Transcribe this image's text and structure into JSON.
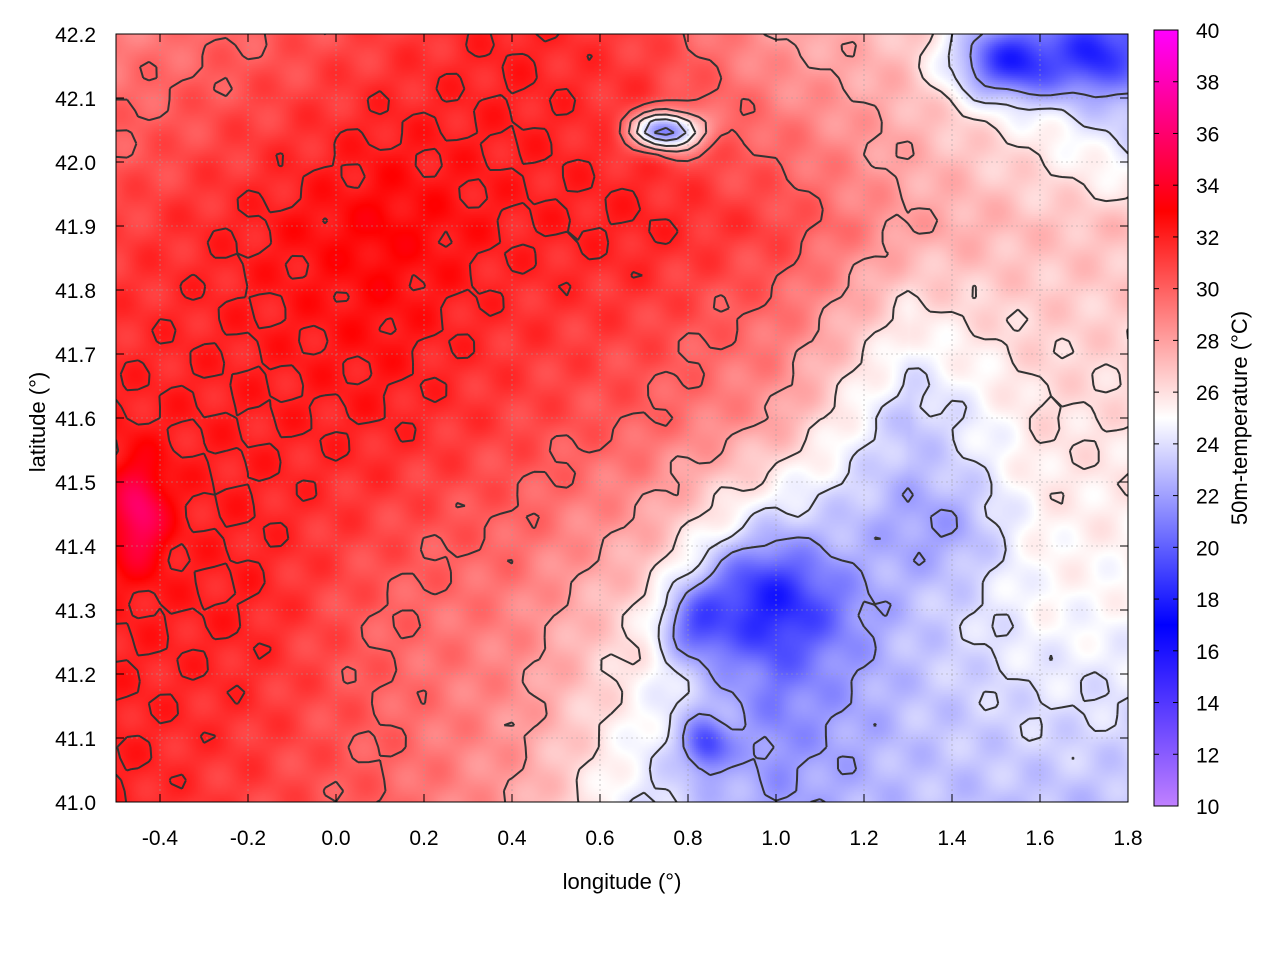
{
  "chart_data": {
    "type": "heatmap",
    "title": "",
    "xlabel": "longitude (°)",
    "ylabel": "latitude (°)",
    "colorbar_label": "50m-temperature (°C)",
    "xlim": [
      -0.5,
      1.8
    ],
    "ylim": [
      41.0,
      42.2
    ],
    "clim": [
      10,
      40
    ],
    "x_ticks": [
      "-0.4",
      "-0.2",
      "0.0",
      "0.2",
      "0.4",
      "0.6",
      "0.8",
      "1.0",
      "1.2",
      "1.4",
      "1.6",
      "1.8"
    ],
    "x_tick_values": [
      -0.4,
      -0.2,
      0.0,
      0.2,
      0.4,
      0.6,
      0.8,
      1.0,
      1.2,
      1.4,
      1.6,
      1.8
    ],
    "y_ticks": [
      "41.0",
      "41.1",
      "41.2",
      "41.3",
      "41.4",
      "41.5",
      "41.6",
      "41.7",
      "41.8",
      "41.9",
      "42.0",
      "42.1",
      "42.2"
    ],
    "y_tick_values": [
      41.0,
      41.1,
      41.2,
      41.3,
      41.4,
      41.5,
      41.6,
      41.7,
      41.8,
      41.9,
      42.0,
      42.1,
      42.2
    ],
    "colorbar_ticks": [
      "10",
      "12",
      "14",
      "16",
      "18",
      "20",
      "22",
      "24",
      "26",
      "28",
      "30",
      "32",
      "34",
      "36",
      "38",
      "40"
    ],
    "colorbar_tick_values": [
      10,
      12,
      14,
      16,
      18,
      20,
      22,
      24,
      26,
      28,
      30,
      32,
      34,
      36,
      38,
      40
    ],
    "colormap": [
      {
        "value": 10,
        "color": "#c080ff"
      },
      {
        "value": 17,
        "color": "#0000ff"
      },
      {
        "value": 25,
        "color": "#ffffff"
      },
      {
        "value": 33,
        "color": "#ff0000"
      },
      {
        "value": 40,
        "color": "#ff00ff"
      }
    ],
    "grid": true,
    "contours": true,
    "field_grid": {
      "lon": [
        -0.5,
        -0.2,
        0.1,
        0.4,
        0.7,
        1.0,
        1.3,
        1.6,
        1.8
      ],
      "lat": [
        42.2,
        41.9,
        41.6,
        41.3,
        41.0
      ],
      "values": [
        [
          29,
          30,
          31,
          32,
          31,
          28,
          27,
          24,
          20
        ],
        [
          31,
          32,
          33,
          32,
          32,
          31,
          28,
          27,
          27
        ],
        [
          32,
          32,
          32,
          31,
          30,
          28,
          23,
          26,
          26
        ],
        [
          32,
          32,
          30,
          29,
          26,
          20,
          23,
          25,
          25
        ],
        [
          32,
          31,
          30,
          28,
          24,
          22,
          23,
          23,
          23
        ]
      ]
    },
    "anomalies": [
      {
        "lon": 0.98,
        "lat": 41.31,
        "value": 18,
        "rlon": 0.14,
        "rlat": 0.08
      },
      {
        "lon": 0.84,
        "lat": 41.28,
        "value": 19,
        "rlon": 0.08,
        "rlat": 0.05
      },
      {
        "lon": 0.84,
        "lat": 41.09,
        "value": 19,
        "rlon": 0.05,
        "rlat": 0.04
      },
      {
        "lon": 1.55,
        "lat": 42.16,
        "value": 18,
        "rlon": 0.14,
        "rlat": 0.06
      },
      {
        "lon": 1.72,
        "lat": 42.17,
        "value": 18,
        "rlon": 0.08,
        "rlat": 0.05
      },
      {
        "lon": 0.75,
        "lat": 42.05,
        "value": 21,
        "rlon": 0.08,
        "rlat": 0.03
      },
      {
        "lon": 1.35,
        "lat": 41.43,
        "value": 22,
        "rlon": 0.14,
        "rlat": 0.08
      },
      {
        "lon": -0.45,
        "lat": 41.45,
        "value": 36,
        "rlon": 0.06,
        "rlat": 0.08
      }
    ]
  }
}
